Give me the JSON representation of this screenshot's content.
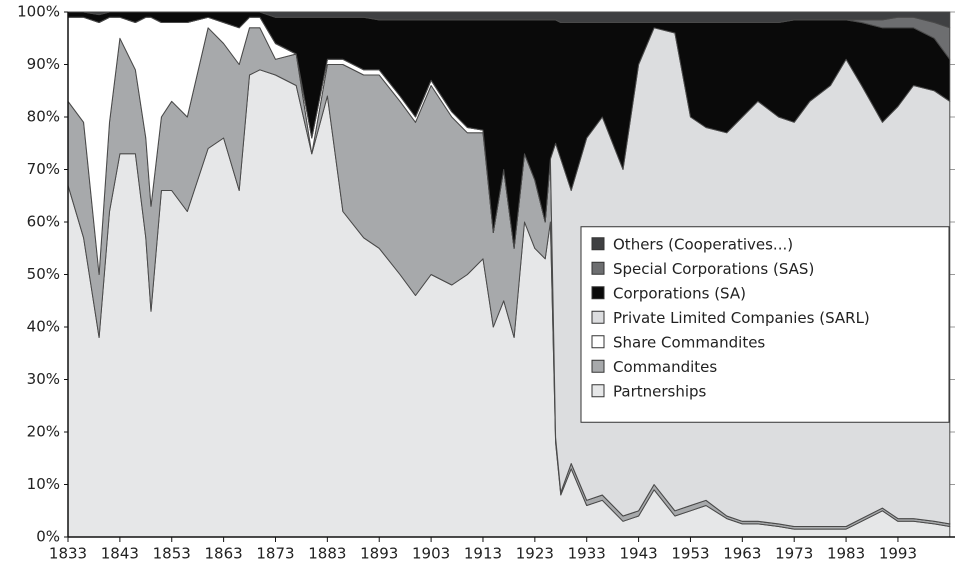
{
  "chart_data": {
    "type": "stacked_area",
    "x": [
      1833,
      1836,
      1839,
      1841,
      1843,
      1846,
      1848,
      1849,
      1851,
      1853,
      1856,
      1860,
      1863,
      1866,
      1868,
      1870,
      1873,
      1877,
      1880,
      1883,
      1886,
      1890,
      1893,
      1897,
      1900,
      1903,
      1907,
      1910,
      1913,
      1915,
      1917,
      1919,
      1921,
      1923,
      1925,
      1926,
      1927,
      1928,
      1930,
      1933,
      1936,
      1940,
      1943,
      1946,
      1950,
      1953,
      1956,
      1960,
      1963,
      1966,
      1970,
      1973,
      1976,
      1980,
      1983,
      1986,
      1990,
      1993,
      1996,
      2000,
      2003
    ],
    "series": [
      {
        "name": "Partnerships",
        "color": "#e6e7e8",
        "values": [
          67,
          57,
          38,
          62,
          73,
          73,
          57,
          43,
          66,
          66,
          62,
          74,
          76,
          66,
          88,
          89,
          88,
          86,
          73,
          84,
          62,
          57,
          55,
          50,
          46,
          50,
          48,
          50,
          53,
          40,
          45,
          38,
          60,
          55,
          53,
          60,
          18,
          8,
          13,
          6,
          7,
          3,
          4,
          9,
          4,
          5,
          6,
          3.5,
          2.5,
          2.5,
          2,
          1.5,
          1.5,
          1.5,
          1.5,
          3,
          5,
          3,
          3,
          2.5,
          2
        ]
      },
      {
        "name": "Commandites",
        "color": "#a7a9ab",
        "values": [
          16,
          22,
          12,
          17,
          22,
          16,
          19,
          20,
          14,
          17,
          18,
          23,
          18,
          24,
          9,
          8,
          3,
          6,
          0,
          6,
          28,
          31,
          33,
          33,
          33,
          36,
          32,
          27,
          24,
          18,
          25,
          17,
          13,
          13,
          7,
          12,
          1,
          0.5,
          1,
          1,
          1,
          1,
          1,
          1,
          1,
          1,
          1,
          0.5,
          0.5,
          0.5,
          0.5,
          0.5,
          0.5,
          0.5,
          0.5,
          0.5,
          0.5,
          0.5,
          0.5,
          0.5,
          0.5
        ]
      },
      {
        "name": "Share Commandites",
        "color": "#ffffff",
        "values": [
          16,
          20,
          48,
          20,
          4,
          9,
          23,
          36,
          18,
          15,
          18,
          2,
          4,
          7,
          2,
          2,
          3,
          0,
          3,
          1,
          1,
          1,
          1,
          1,
          1,
          1,
          1,
          1,
          0.5,
          0,
          0,
          0,
          0,
          0,
          0,
          0,
          0,
          0,
          0,
          0,
          0,
          0,
          0,
          0,
          0,
          0,
          0,
          0,
          0,
          0,
          0,
          0,
          0,
          0,
          0,
          0,
          0,
          0,
          0,
          0,
          0
        ]
      },
      {
        "name": "Private Limited Companies (SARL)",
        "color": "#dcdddf",
        "values": [
          0,
          0,
          0,
          0,
          0,
          0,
          0,
          0,
          0,
          0,
          0,
          0,
          0,
          0,
          0,
          0,
          0,
          0,
          0,
          0,
          0,
          0,
          0,
          0,
          0,
          0,
          0,
          0,
          0,
          0,
          0,
          0,
          0,
          0,
          0,
          0,
          56,
          63.5,
          52,
          69,
          72,
          66,
          85,
          87,
          91,
          74,
          71,
          73,
          77,
          80,
          77.5,
          77,
          81,
          84,
          89,
          82.5,
          73.5,
          78.5,
          82.5,
          82,
          80.5
        ]
      },
      {
        "name": "Corporations (SA)",
        "color": "#0a0a0a",
        "values": [
          1,
          1,
          1.5,
          1,
          1,
          2,
          1,
          1,
          2,
          2,
          2,
          1,
          2,
          3,
          1,
          1,
          5,
          7,
          23,
          8,
          8,
          10,
          9.5,
          14.5,
          18.5,
          11.5,
          17.5,
          20.5,
          21,
          40.5,
          28.5,
          43.5,
          25.5,
          30.5,
          38.5,
          26.5,
          23.5,
          26,
          32,
          22,
          18,
          28,
          8,
          1,
          2,
          18,
          20,
          21,
          18,
          15,
          18,
          19.5,
          15.5,
          12.5,
          7.5,
          12,
          18,
          15,
          11,
          10,
          8
        ]
      },
      {
        "name": "Special Corporations (SAS)",
        "color": "#6d6e70",
        "values": [
          0,
          0,
          0,
          0,
          0,
          0,
          0,
          0,
          0,
          0,
          0,
          0,
          0,
          0,
          0,
          0,
          0,
          0,
          0,
          0,
          0,
          0,
          0,
          0,
          0,
          0,
          0,
          0,
          0,
          0,
          0,
          0,
          0,
          0,
          0,
          0,
          0,
          0,
          0,
          0,
          0,
          0,
          0,
          0,
          0,
          0,
          0,
          0,
          0,
          0,
          0,
          0,
          0,
          0,
          0,
          0.5,
          1.5,
          2,
          2,
          3,
          6
        ]
      },
      {
        "name": "Others (Cooperatives...)",
        "color": "#3f4042",
        "values": [
          0,
          0,
          0.5,
          0,
          0,
          0,
          0,
          0,
          0,
          0,
          0,
          0,
          0,
          0,
          0,
          0,
          1,
          1,
          1,
          1,
          1,
          1,
          1.5,
          1.5,
          1.5,
          1.5,
          1.5,
          1.5,
          1.5,
          1.5,
          1.5,
          1.5,
          1.5,
          1.5,
          1.5,
          1.5,
          1.5,
          2,
          2,
          2,
          2,
          2,
          2,
          2,
          2,
          2,
          2,
          2,
          2,
          2,
          2,
          1.5,
          1.5,
          1.5,
          1.5,
          1.5,
          1.5,
          1,
          1,
          2,
          3
        ]
      }
    ],
    "xlim": [
      1833,
      2004
    ],
    "xticks": [
      1833,
      1843,
      1853,
      1863,
      1873,
      1883,
      1893,
      1903,
      1913,
      1923,
      1933,
      1943,
      1953,
      1963,
      1973,
      1983,
      1993
    ],
    "ylim": [
      0,
      100
    ],
    "yticks": [
      {
        "value": 0,
        "label": "0%"
      },
      {
        "value": 10,
        "label": "10%"
      },
      {
        "value": 20,
        "label": "20%"
      },
      {
        "value": 30,
        "label": "30%"
      },
      {
        "value": 40,
        "label": "40%"
      },
      {
        "value": 50,
        "label": "50%"
      },
      {
        "value": 60,
        "label": "60%"
      },
      {
        "value": 70,
        "label": "70%"
      },
      {
        "value": 80,
        "label": "80%"
      },
      {
        "value": 90,
        "label": "90%"
      },
      {
        "value": 100,
        "label": "100%"
      }
    ],
    "grid": true,
    "legend_position": "right"
  }
}
